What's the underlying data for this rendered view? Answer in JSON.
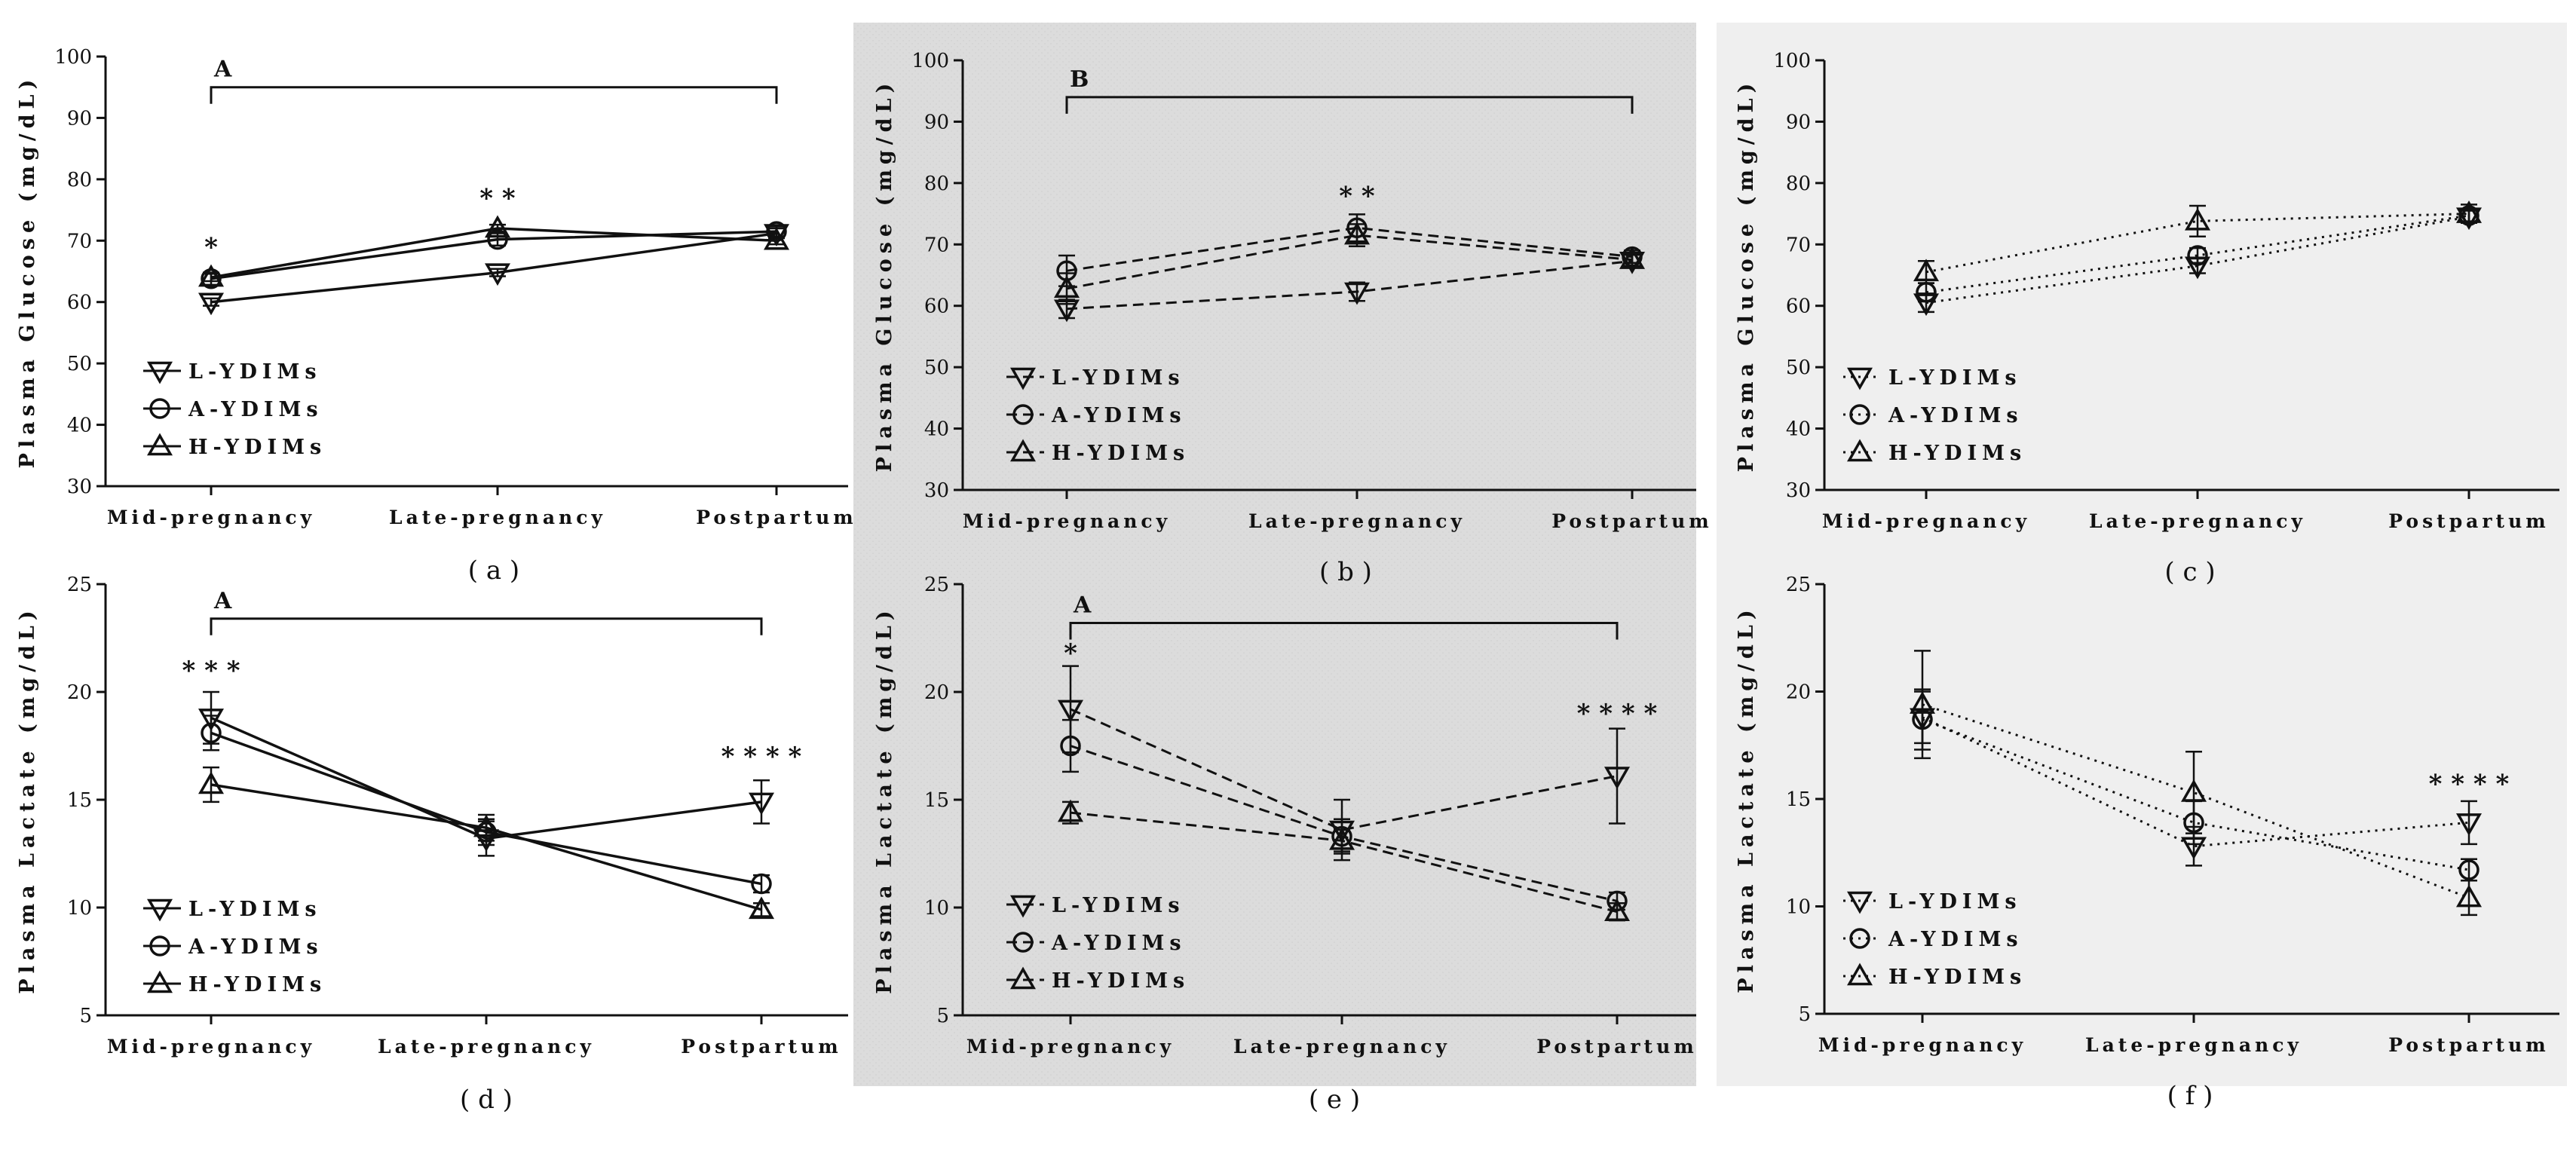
{
  "figure_title": "",
  "colors": {
    "line": "#111111",
    "panel_b_bg": "#dcdcdc",
    "panel_c_bg": "#efefef",
    "panel_e_bg": "#dcdcdc",
    "panel_f_bg": "#efefef"
  },
  "chart_data": [
    {
      "id": "a",
      "type": "line",
      "caption": "( a )",
      "ylabel": "Plasma Glucose (mg/dL)",
      "ylim": [
        30,
        100
      ],
      "yticks": [
        30,
        40,
        50,
        60,
        70,
        80,
        90,
        100
      ],
      "categories": [
        "Mid-pregnancy",
        "Late-pregnancy",
        "Postpartum"
      ],
      "line_style": "solid",
      "background": "white",
      "series": [
        {
          "name": "L-YDIMs",
          "marker": "triangle-down",
          "values": [
            60.0,
            64.8,
            71.2
          ],
          "errors": [
            0.6,
            0.6,
            0.8
          ]
        },
        {
          "name": "A-YDIMs",
          "marker": "circle",
          "values": [
            63.8,
            70.2,
            71.5
          ],
          "errors": [
            1.0,
            1.0,
            0.8
          ]
        },
        {
          "name": "H-YDIMs",
          "marker": "triangle-up",
          "values": [
            64.0,
            72.0,
            70.0
          ],
          "errors": [
            0.6,
            0.6,
            0.6
          ]
        }
      ],
      "significance_labels": [
        {
          "category": "Mid-pregnancy",
          "text": "*",
          "y": 67.5
        },
        {
          "category": "Late-pregnancy",
          "text": "* *",
          "y": 75.5
        }
      ],
      "bracket": {
        "label": "A",
        "from": "Mid-pregnancy",
        "to": "Postpartum",
        "y": 95
      }
    },
    {
      "id": "b",
      "type": "line",
      "caption": "( b )",
      "ylabel": "Plasma Glucose (mg/dL)",
      "ylim": [
        30,
        100
      ],
      "yticks": [
        30,
        40,
        50,
        60,
        70,
        80,
        90,
        100
      ],
      "categories": [
        "Mid-pregnancy",
        "Late-pregnancy",
        "Postpartum"
      ],
      "line_style": "dashed",
      "background": "gray",
      "series": [
        {
          "name": "L-YDIMs",
          "marker": "triangle-down",
          "values": [
            59.5,
            62.3,
            67.3
          ],
          "errors": [
            1.5,
            1.5,
            1.0
          ]
        },
        {
          "name": "A-YDIMs",
          "marker": "circle",
          "values": [
            65.7,
            72.7,
            68.0
          ],
          "errors": [
            2.5,
            2.2,
            1.0
          ]
        },
        {
          "name": "H-YDIMs",
          "marker": "triangle-up",
          "values": [
            62.8,
            71.5,
            67.5
          ],
          "errors": [
            2.5,
            1.8,
            1.0
          ]
        }
      ],
      "significance_labels": [
        {
          "category": "Late-pregnancy",
          "text": "* *",
          "y": 76.5
        }
      ],
      "bracket": {
        "label": "B",
        "from": "Mid-pregnancy",
        "to": "Postpartum",
        "y": 94
      }
    },
    {
      "id": "c",
      "type": "line",
      "caption": "( c )",
      "ylabel": "Plasma Glucose (mg/dL)",
      "ylim": [
        30,
        100
      ],
      "yticks": [
        30,
        40,
        50,
        60,
        70,
        80,
        90,
        100
      ],
      "categories": [
        "Mid-pregnancy",
        "Late-pregnancy",
        "Postpartum"
      ],
      "line_style": "dotted",
      "background": "light",
      "series": [
        {
          "name": "L-YDIMs",
          "marker": "triangle-down",
          "values": [
            60.5,
            66.5,
            74.5
          ],
          "errors": [
            1.5,
            1.2,
            1.0
          ]
        },
        {
          "name": "A-YDIMs",
          "marker": "circle",
          "values": [
            62.2,
            68.2,
            74.7
          ],
          "errors": [
            1.5,
            1.2,
            1.0
          ]
        },
        {
          "name": "H-YDIMs",
          "marker": "triangle-up",
          "values": [
            65.5,
            73.8,
            75.0
          ],
          "errors": [
            1.8,
            2.5,
            1.5
          ]
        }
      ],
      "significance_labels": [],
      "bracket": null
    },
    {
      "id": "d",
      "type": "line",
      "caption": "( d )",
      "ylabel": "Plasma Lactate (mg/dL)",
      "ylim": [
        5,
        25
      ],
      "yticks": [
        5,
        10,
        15,
        20,
        25
      ],
      "categories": [
        "Mid-pregnancy",
        "Late-pregnancy",
        "Postpartum"
      ],
      "line_style": "solid",
      "background": "white",
      "series": [
        {
          "name": "L-YDIMs",
          "marker": "triangle-down",
          "values": [
            18.8,
            13.2,
            14.9
          ],
          "errors": [
            1.2,
            0.8,
            1.0
          ]
        },
        {
          "name": "A-YDIMs",
          "marker": "circle",
          "values": [
            18.1,
            13.5,
            11.1
          ],
          "errors": [
            0.8,
            0.6,
            0.4
          ]
        },
        {
          "name": "H-YDIMs",
          "marker": "triangle-up",
          "values": [
            15.7,
            13.7,
            9.9
          ],
          "errors": [
            0.8,
            0.6,
            0.3
          ]
        }
      ],
      "significance_labels": [
        {
          "category": "Mid-pregnancy",
          "text": "* * *",
          "y": 20.6
        },
        {
          "category": "Postpartum",
          "text": "* * * *",
          "y": 16.6
        }
      ],
      "bracket": {
        "label": "A",
        "from": "Mid-pregnancy",
        "to": "Postpartum",
        "y": 23.4
      }
    },
    {
      "id": "e",
      "type": "line",
      "caption": "( e )",
      "ylabel": "Plasma Lactate (mg/dL)",
      "ylim": [
        5,
        25
      ],
      "yticks": [
        5,
        10,
        15,
        20,
        25
      ],
      "categories": [
        "Mid-pregnancy",
        "Late-pregnancy",
        "Postpartum"
      ],
      "line_style": "dashed",
      "background": "gray",
      "series": [
        {
          "name": "L-YDIMs",
          "marker": "triangle-down",
          "values": [
            19.2,
            13.6,
            16.1
          ],
          "errors": [
            2.0,
            1.4,
            2.2
          ]
        },
        {
          "name": "A-YDIMs",
          "marker": "circle",
          "values": [
            17.5,
            13.3,
            10.3
          ],
          "errors": [
            1.2,
            0.8,
            0.4
          ]
        },
        {
          "name": "H-YDIMs",
          "marker": "triangle-up",
          "values": [
            14.4,
            13.1,
            9.8
          ],
          "errors": [
            0.5,
            0.5,
            0.4
          ]
        }
      ],
      "significance_labels": [
        {
          "category": "Mid-pregnancy",
          "text": "*",
          "y": 21.4
        },
        {
          "category": "Postpartum",
          "text": "* * * *",
          "y": 18.6
        }
      ],
      "bracket": {
        "label": "A",
        "from": "Mid-pregnancy",
        "to": "Postpartum",
        "y": 23.2
      }
    },
    {
      "id": "f",
      "type": "line",
      "caption": "( f )",
      "ylabel": "Plasma Lactate (mg/dL)",
      "ylim": [
        5,
        25
      ],
      "yticks": [
        5,
        10,
        15,
        20,
        25
      ],
      "categories": [
        "Mid-pregnancy",
        "Late-pregnancy",
        "Postpartum"
      ],
      "line_style": "dotted",
      "background": "light",
      "series": [
        {
          "name": "L-YDIMs",
          "marker": "triangle-down",
          "values": [
            18.8,
            12.8,
            13.9
          ],
          "errors": [
            1.2,
            0.9,
            1.0
          ]
        },
        {
          "name": "A-YDIMs",
          "marker": "circle",
          "values": [
            18.7,
            13.9,
            11.7
          ],
          "errors": [
            1.4,
            1.0,
            0.5
          ]
        },
        {
          "name": "H-YDIMs",
          "marker": "triangle-up",
          "values": [
            19.4,
            15.3,
            10.4
          ],
          "errors": [
            2.5,
            1.9,
            0.8
          ]
        }
      ],
      "significance_labels": [
        {
          "category": "Postpartum",
          "text": "* * * *",
          "y": 15.3
        }
      ],
      "bracket": null
    }
  ]
}
